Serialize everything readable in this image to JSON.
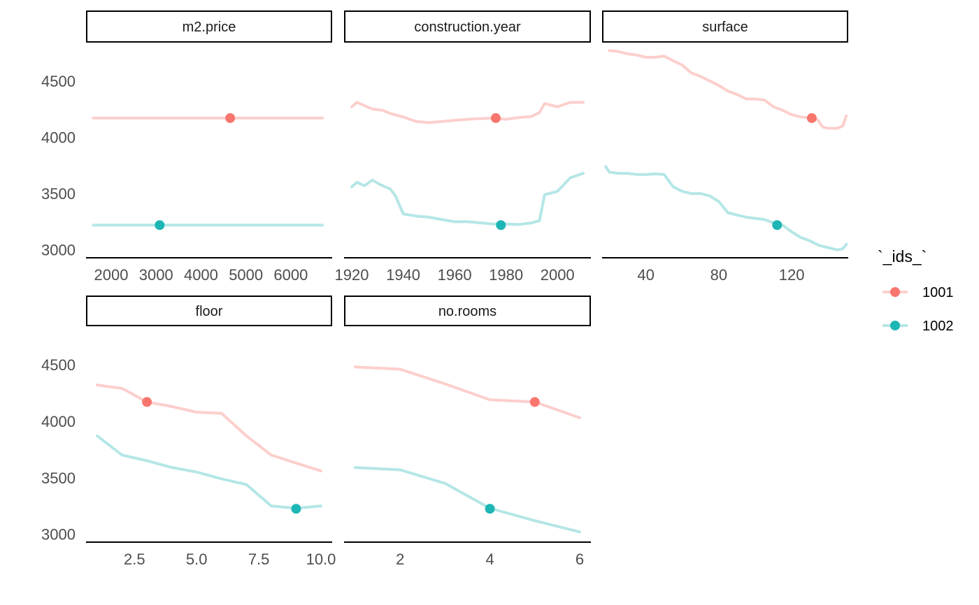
{
  "chart_data": {
    "type": "line",
    "legend": {
      "title": "`_ids_`",
      "position": "right",
      "entries": [
        {
          "id": "1001",
          "label": "1001",
          "color": "#F8766D",
          "line_color": "#FCCFCC"
        },
        {
          "id": "1002",
          "label": "1002",
          "color": "#1EB5B5",
          "line_color": "#B5E6E6"
        }
      ]
    },
    "y_axis": {
      "ticks": [
        3000,
        3500,
        4000,
        4500
      ],
      "tick_labels": [
        "3000",
        "3500",
        "4000",
        "4500"
      ],
      "range": [
        2930,
        4840
      ]
    },
    "panels": [
      {
        "id": "m2_price",
        "title": "m2.price",
        "x_range": [
          1440,
          6920
        ],
        "x_ticks": [
          2000,
          3000,
          4000,
          5000,
          6000
        ],
        "x_tick_labels": [
          "2000",
          "3000",
          "4000",
          "5000",
          "6000"
        ],
        "series": [
          {
            "id": "1001",
            "x": [
              1600,
              6700
            ],
            "y": [
              4170,
              4170
            ]
          },
          {
            "id": "1002",
            "x": [
              1600,
              6700
            ],
            "y": [
              3220,
              3220
            ]
          }
        ],
        "points": [
          {
            "id": "1001",
            "x": 4650,
            "y": 4170
          },
          {
            "id": "1002",
            "x": 3080,
            "y": 3220
          }
        ]
      },
      {
        "id": "construction_year",
        "title": "construction.year",
        "x_range": [
          1917,
          2013
        ],
        "x_ticks": [
          1920,
          1940,
          1960,
          1980,
          2000
        ],
        "x_tick_labels": [
          "1920",
          "1940",
          "1960",
          "1980",
          "2000"
        ],
        "series": [
          {
            "id": "1001",
            "x": [
              1920,
              1922,
              1925,
              1928,
              1932,
              1935,
              1940,
              1945,
              1950,
              1955,
              1960,
              1965,
              1970,
              1975,
              1980,
              1985,
              1990,
              1993,
              1995,
              2000,
              2005,
              2010
            ],
            "y": [
              4270,
              4310,
              4280,
              4250,
              4240,
              4210,
              4180,
              4140,
              4130,
              4140,
              4150,
              4160,
              4165,
              4170,
              4160,
              4175,
              4185,
              4220,
              4300,
              4270,
              4310,
              4310
            ]
          },
          {
            "id": "1002",
            "x": [
              1920,
              1922,
              1925,
              1928,
              1931,
              1935,
              1937,
              1940,
              1945,
              1950,
              1955,
              1960,
              1965,
              1970,
              1975,
              1980,
              1985,
              1990,
              1993,
              1995,
              2000,
              2005,
              2010
            ],
            "y": [
              3560,
              3600,
              3570,
              3620,
              3580,
              3540,
              3480,
              3320,
              3300,
              3290,
              3270,
              3250,
              3250,
              3240,
              3230,
              3230,
              3225,
              3240,
              3260,
              3490,
              3520,
              3640,
              3680
            ]
          }
        ],
        "points": [
          {
            "id": "1001",
            "x": 1976,
            "y": 4170
          },
          {
            "id": "1002",
            "x": 1978,
            "y": 3220
          }
        ]
      },
      {
        "id": "surface",
        "title": "surface",
        "x_range": [
          16,
          151
        ],
        "x_ticks": [
          40,
          80,
          120
        ],
        "x_tick_labels": [
          "40",
          "80",
          "120"
        ],
        "series": [
          {
            "id": "1001",
            "x": [
              20,
              25,
              30,
              35,
              40,
              45,
              50,
              55,
              60,
              65,
              70,
              75,
              80,
              85,
              90,
              95,
              100,
              105,
              110,
              115,
              120,
              125,
              130,
              134,
              137,
              140,
              145,
              148,
              150
            ],
            "y": [
              4770,
              4760,
              4740,
              4730,
              4710,
              4710,
              4720,
              4680,
              4640,
              4570,
              4540,
              4500,
              4460,
              4410,
              4380,
              4340,
              4340,
              4330,
              4270,
              4240,
              4200,
              4180,
              4170,
              4160,
              4090,
              4080,
              4080,
              4100,
              4190
            ]
          },
          {
            "id": "1002",
            "x": [
              18,
              20,
              25,
              30,
              35,
              40,
              45,
              50,
              55,
              60,
              65,
              70,
              75,
              80,
              85,
              90,
              95,
              100,
              105,
              110,
              115,
              120,
              125,
              130,
              135,
              140,
              145,
              148,
              150
            ],
            "y": [
              3740,
              3690,
              3680,
              3680,
              3670,
              3670,
              3675,
              3670,
              3560,
              3520,
              3500,
              3500,
              3480,
              3430,
              3330,
              3310,
              3290,
              3280,
              3270,
              3240,
              3220,
              3160,
              3110,
              3080,
              3040,
              3020,
              3000,
              3010,
              3050
            ]
          }
        ],
        "points": [
          {
            "id": "1001",
            "x": 131,
            "y": 4170
          },
          {
            "id": "1002",
            "x": 112,
            "y": 3220
          }
        ]
      },
      {
        "id": "floor",
        "title": "floor",
        "x_range": [
          0.55,
          10.45
        ],
        "x_ticks": [
          2.5,
          5.0,
          7.5,
          10.0
        ],
        "x_tick_labels": [
          "2.5",
          "5.0",
          "7.5",
          "10.0"
        ],
        "series": [
          {
            "id": "1001",
            "x": [
              1,
              2,
              3,
              4,
              5,
              6,
              7,
              8,
              9,
              10
            ],
            "y": [
              4320,
              4290,
              4170,
              4130,
              4080,
              4070,
              3870,
              3700,
              3630,
              3560
            ]
          },
          {
            "id": "1002",
            "x": [
              1,
              2,
              3,
              4,
              5,
              6,
              7,
              8,
              9,
              10
            ],
            "y": [
              3870,
              3700,
              3650,
              3590,
              3550,
              3490,
              3440,
              3250,
              3230,
              3250
            ]
          }
        ],
        "points": [
          {
            "id": "1001",
            "x": 3,
            "y": 4170
          },
          {
            "id": "1002",
            "x": 9,
            "y": 3225
          }
        ]
      },
      {
        "id": "no_rooms",
        "title": "no.rooms",
        "x_range": [
          0.75,
          6.25
        ],
        "x_ticks": [
          2,
          4,
          6
        ],
        "x_tick_labels": [
          "2",
          "4",
          "6"
        ],
        "series": [
          {
            "id": "1001",
            "x": [
              1,
              2,
              3,
              4,
              5,
              6
            ],
            "y": [
              4480,
              4460,
              4330,
              4190,
              4170,
              4030
            ]
          },
          {
            "id": "1002",
            "x": [
              1,
              2,
              3,
              4,
              5,
              6
            ],
            "y": [
              3590,
              3570,
              3450,
              3230,
              3120,
              3020
            ]
          }
        ],
        "points": [
          {
            "id": "1001",
            "x": 5,
            "y": 4170
          },
          {
            "id": "1002",
            "x": 4,
            "y": 3225
          }
        ]
      }
    ]
  }
}
